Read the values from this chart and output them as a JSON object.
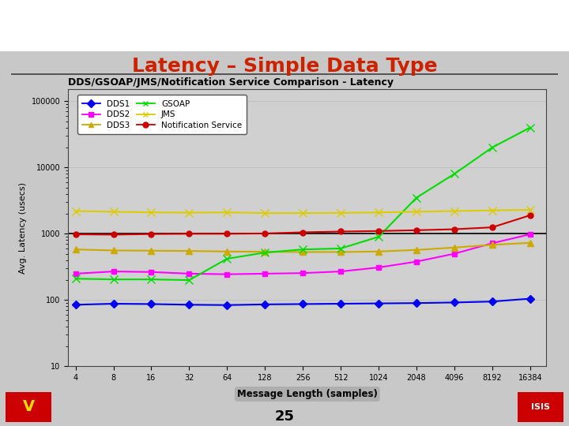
{
  "title": "DDS/GSOAP/JMS/Notification Service Comparison - Latency",
  "xlabel": "Message Length (samples)",
  "ylabel": "Avg. Latency (usecs)",
  "x_labels": [
    "4",
    "8",
    "16",
    "32",
    "64",
    "128",
    "256",
    "512",
    "1024",
    "2048",
    "4096",
    "8192",
    "16384"
  ],
  "x_values": [
    4,
    8,
    16,
    32,
    64,
    128,
    256,
    512,
    1024,
    2048,
    4096,
    8192,
    16384
  ],
  "series_order": [
    "DDS1",
    "DDS2",
    "DDS3",
    "GSOAP",
    "JMS",
    "Notification Service"
  ],
  "series": {
    "DDS1": {
      "values": [
        85,
        88,
        87,
        85,
        84,
        86,
        87,
        88,
        89,
        90,
        92,
        95,
        105
      ],
      "color": "#0000ee",
      "marker": "D",
      "markersize": 5
    },
    "DDS2": {
      "values": [
        250,
        270,
        265,
        250,
        245,
        250,
        255,
        270,
        310,
        380,
        500,
        720,
        980
      ],
      "color": "#ff00ff",
      "marker": "s",
      "markersize": 5
    },
    "DDS3": {
      "values": [
        580,
        560,
        555,
        550,
        540,
        535,
        530,
        530,
        540,
        570,
        620,
        680,
        730
      ],
      "color": "#ccaa00",
      "marker": "^",
      "markersize": 6
    },
    "GSOAP": {
      "values": [
        210,
        205,
        205,
        200,
        420,
        520,
        580,
        600,
        900,
        3500,
        8000,
        20000,
        40000
      ],
      "color": "#00dd00",
      "marker": "x",
      "markersize": 7
    },
    "JMS": {
      "values": [
        2200,
        2150,
        2100,
        2080,
        2100,
        2050,
        2050,
        2060,
        2100,
        2150,
        2200,
        2250,
        2300
      ],
      "color": "#ddcc00",
      "marker": "x",
      "markersize": 7
    },
    "Notification Service": {
      "values": [
        980,
        970,
        990,
        1000,
        1000,
        1010,
        1050,
        1080,
        1100,
        1130,
        1170,
        1250,
        1900
      ],
      "color": "#cc0000",
      "marker": "o",
      "markersize": 5
    }
  },
  "slide_title": "Latency – Simple Data Type",
  "slide_number": "25",
  "outer_bg": "#c8c8c8",
  "chart_bg": "#d0d0d0",
  "title_color": "#cc2200"
}
